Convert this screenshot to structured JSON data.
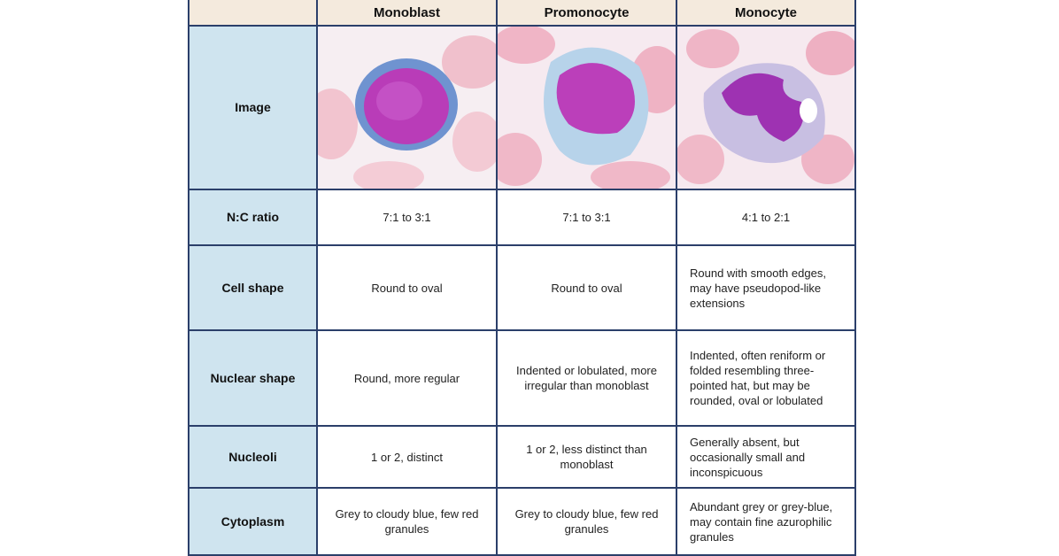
{
  "header": {
    "columns": [
      "Monoblast",
      "Promonocyte",
      "Monocyte"
    ]
  },
  "rows": [
    {
      "label": "Image"
    },
    {
      "label": "N:C ratio",
      "cells": [
        "7:1 to 3:1",
        "7:1 to 3:1",
        "4:1 to 2:1"
      ]
    },
    {
      "label": "Cell shape",
      "cells": [
        "Round to oval",
        "Round to oval",
        "Round with smooth edges, may have pseudopod-like extensions"
      ]
    },
    {
      "label": "Nuclear shape",
      "cells": [
        "Round, more regular",
        "Indented or lobulated, more irregular than monoblast",
        "Indented, often reniform or folded resembling three-pointed hat, but may be rounded, oval or lobulated"
      ]
    },
    {
      "label": "Nucleoli",
      "cells": [
        "1 or 2, distinct",
        "1 or 2, less distinct than monoblast",
        "Generally absent, but occasionally small and inconspicuous"
      ]
    },
    {
      "label": "Cytoplasm",
      "cells": [
        "Grey to cloudy blue, few red granules",
        "Grey to cloudy blue, few red granules",
        "Abundant grey or grey-blue, may contain fine azurophilic granules"
      ]
    }
  ]
}
